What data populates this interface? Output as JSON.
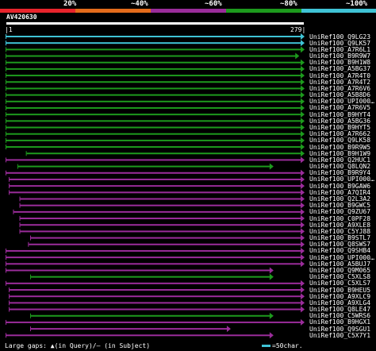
{
  "legend": {
    "labels": [
      "20%",
      "~40%",
      "~60%",
      "~80%",
      "~100%"
    ],
    "colors": [
      "#e8242c",
      "#e46c1c",
      "#9a2c9a",
      "#1d9a1d",
      "#3fc3d5"
    ]
  },
  "query": {
    "id": "AV420630",
    "start_label": "|1",
    "end_label": "279|"
  },
  "footer": {
    "gaps_text": "Large gaps: ▲(in Query)/– (in Subject)",
    "scale_text": "=50char."
  },
  "hits": [
    {
      "label": "UniRef100_Q9LG23",
      "identity": "~100%",
      "color": "#3fc3d5",
      "start": 1,
      "end": 279
    },
    {
      "label": "UniRef100_Q9LK57",
      "identity": "~100%",
      "color": "#3fc3d5",
      "start": 1,
      "end": 279
    },
    {
      "label": "UniRef100_A7R6L1",
      "identity": "~80%",
      "color": "#1d9a1d",
      "start": 1,
      "end": 279
    },
    {
      "label": "UniRef100_B9R9W7",
      "identity": "~80%",
      "color": "#1d9a1d",
      "start": 1,
      "end": 274
    },
    {
      "label": "UniRef100_B9H1W8",
      "identity": "~80%",
      "color": "#1d9a1d",
      "start": 1,
      "end": 279
    },
    {
      "label": "UniRef100_A5BG37",
      "identity": "~80%",
      "color": "#1d9a1d",
      "start": 1,
      "end": 279
    },
    {
      "label": "UniRef100_A7R4T0",
      "identity": "~80%",
      "color": "#1d9a1d",
      "start": 1,
      "end": 279
    },
    {
      "label": "UniRef100_A7R4T2",
      "identity": "~80%",
      "color": "#1d9a1d",
      "start": 1,
      "end": 279
    },
    {
      "label": "UniRef100_A7R6V6",
      "identity": "~80%",
      "color": "#1d9a1d",
      "start": 1,
      "end": 279
    },
    {
      "label": "UniRef100_A5B8D6",
      "identity": "~80%",
      "color": "#1d9a1d",
      "start": 1,
      "end": 279
    },
    {
      "label": "UniRef100_UPI000…",
      "identity": "~80%",
      "color": "#1d9a1d",
      "start": 1,
      "end": 279
    },
    {
      "label": "UniRef100_A7R6V5",
      "identity": "~80%",
      "color": "#1d9a1d",
      "start": 1,
      "end": 279
    },
    {
      "label": "UniRef100_B9HYT4",
      "identity": "~80%",
      "color": "#1d9a1d",
      "start": 1,
      "end": 279
    },
    {
      "label": "UniRef100_A5BG36",
      "identity": "~80%",
      "color": "#1d9a1d",
      "start": 1,
      "end": 279
    },
    {
      "label": "UniRef100_B9HYT5",
      "identity": "~80%",
      "color": "#1d9a1d",
      "start": 1,
      "end": 279
    },
    {
      "label": "UniRef100_A7R662",
      "identity": "~80%",
      "color": "#1d9a1d",
      "start": 1,
      "end": 279
    },
    {
      "label": "UniRef100_Q9LK58",
      "identity": "~80%",
      "color": "#1d9a1d",
      "start": 1,
      "end": 279
    },
    {
      "label": "UniRef100_B9R9W5",
      "identity": "~80%",
      "color": "#1d9a1d",
      "start": 1,
      "end": 279
    },
    {
      "label": "UniRef100_B9H1W9",
      "identity": "~80%",
      "color": "#1d9a1d",
      "start": 20,
      "end": 279
    },
    {
      "label": "UniRef100_Q2HUC1",
      "identity": "~60%",
      "color": "#9a2c9a",
      "start": 1,
      "end": 279
    },
    {
      "label": "UniRef100_Q8LQN2",
      "identity": "~80%",
      "color": "#1d9a1d",
      "start": 12,
      "end": 250
    },
    {
      "label": "UniRef100_B9R9Y4",
      "identity": "~60%",
      "color": "#9a2c9a",
      "start": 1,
      "end": 279
    },
    {
      "label": "UniRef100_UPI000…",
      "identity": "~60%",
      "color": "#9a2c9a",
      "start": 4,
      "end": 279
    },
    {
      "label": "UniRef100_B9GAW6",
      "identity": "~60%",
      "color": "#9a2c9a",
      "start": 4,
      "end": 279
    },
    {
      "label": "UniRef100_A7QIR4",
      "identity": "~60%",
      "color": "#9a2c9a",
      "start": 4,
      "end": 279
    },
    {
      "label": "UniRef100_Q2L3A2",
      "identity": "~60%",
      "color": "#9a2c9a",
      "start": 14,
      "end": 279
    },
    {
      "label": "UniRef100_B9GWC5",
      "identity": "~60%",
      "color": "#9a2c9a",
      "start": 14,
      "end": 279
    },
    {
      "label": "UniRef100_Q9ZU67",
      "identity": "~60%",
      "color": "#9a2c9a",
      "start": 8,
      "end": 279
    },
    {
      "label": "UniRef100_C0PF28",
      "identity": "~60%",
      "color": "#9a2c9a",
      "start": 14,
      "end": 279
    },
    {
      "label": "UniRef100_A9XLE8",
      "identity": "~60%",
      "color": "#9a2c9a",
      "start": 14,
      "end": 279
    },
    {
      "label": "UniRef100_C5YJ88",
      "identity": "~60%",
      "color": "#9a2c9a",
      "start": 14,
      "end": 279
    },
    {
      "label": "UniRef100_B9STL7",
      "identity": "~60%",
      "color": "#9a2c9a",
      "start": 24,
      "end": 279
    },
    {
      "label": "UniRef100_Q8SWS7",
      "identity": "~60%",
      "color": "#9a2c9a",
      "start": 22,
      "end": 279
    },
    {
      "label": "UniRef100_Q9SHB4",
      "identity": "~60%",
      "color": "#9a2c9a",
      "start": 1,
      "end": 279
    },
    {
      "label": "UniRef100_UPI000…",
      "identity": "~60%",
      "color": "#9a2c9a",
      "start": 1,
      "end": 279
    },
    {
      "label": "UniRef100_A5BUJ7",
      "identity": "~60%",
      "color": "#9a2c9a",
      "start": 1,
      "end": 279
    },
    {
      "label": "UniRef100_Q9M065",
      "identity": "~60%",
      "color": "#9a2c9a",
      "start": 1,
      "end": 250
    },
    {
      "label": "UniRef100_C5XLS8",
      "identity": "~80%",
      "color": "#1d9a1d",
      "start": 24,
      "end": 250
    },
    {
      "label": "UniRef100_C5XLS7",
      "identity": "~60%",
      "color": "#9a2c9a",
      "start": 1,
      "end": 279
    },
    {
      "label": "UniRef100_B9HEU5",
      "identity": "~60%",
      "color": "#9a2c9a",
      "start": 4,
      "end": 279
    },
    {
      "label": "UniRef100_A9XLC9",
      "identity": "~60%",
      "color": "#9a2c9a",
      "start": 4,
      "end": 279
    },
    {
      "label": "UniRef100_A9XLG4",
      "identity": "~60%",
      "color": "#9a2c9a",
      "start": 4,
      "end": 279
    },
    {
      "label": "UniRef100_Q8LE47",
      "identity": "~60%",
      "color": "#9a2c9a",
      "start": 4,
      "end": 279
    },
    {
      "label": "UniRef100_C5WRS6",
      "identity": "~80%",
      "color": "#1d9a1d",
      "start": 24,
      "end": 250
    },
    {
      "label": "UniRef100_B9HGX1",
      "identity": "~60%",
      "color": "#9a2c9a",
      "start": 1,
      "end": 279
    },
    {
      "label": "UniRef100_Q9SGU1",
      "identity": "~60%",
      "color": "#9a2c9a",
      "start": 24,
      "end": 210
    },
    {
      "label": "UniRef100_C5X7Y1",
      "identity": "~60%",
      "color": "#9a2c9a",
      "start": 1,
      "end": 250
    }
  ]
}
